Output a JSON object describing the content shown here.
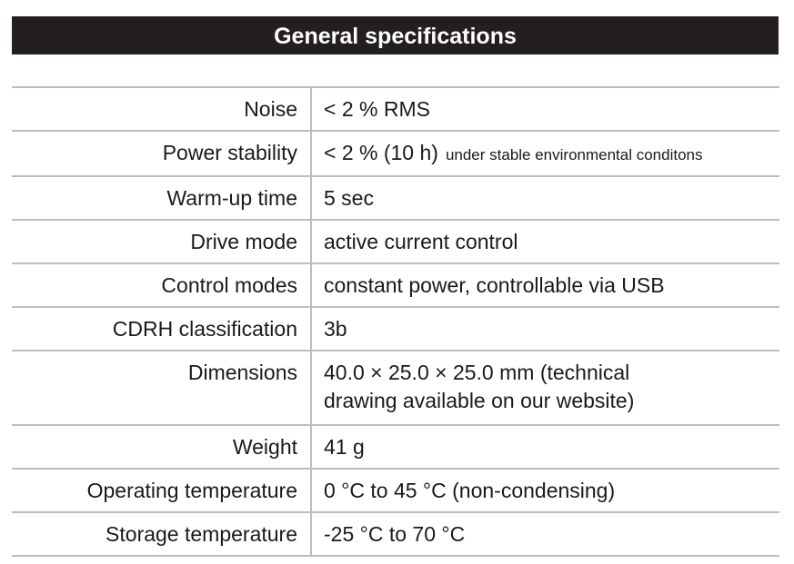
{
  "header": {
    "title": "General specifications"
  },
  "table": {
    "rows": [
      {
        "label": "Noise",
        "value": "< 2 % RMS"
      },
      {
        "label": "Power stability",
        "value": "< 2 % (10 h)",
        "note": "under stable environmental conditons"
      },
      {
        "label": "Warm-up time",
        "value": "5 sec"
      },
      {
        "label": "Drive mode",
        "value": "active current control"
      },
      {
        "label": "Control modes",
        "value": "constant power, controllable via USB"
      },
      {
        "label": "CDRH classification",
        "value": "3b"
      },
      {
        "label": "Dimensions",
        "lines": [
          "40.0 × 25.0 × 25.0 mm (technical",
          "drawing available on our website)"
        ]
      },
      {
        "label": "Weight",
        "value": "41 g"
      },
      {
        "label": "Operating temperature",
        "value": "0 °C to 45 °C (non-condensing)"
      },
      {
        "label": "Storage temperature",
        "value": "-25 °C to 70 °C"
      }
    ]
  }
}
